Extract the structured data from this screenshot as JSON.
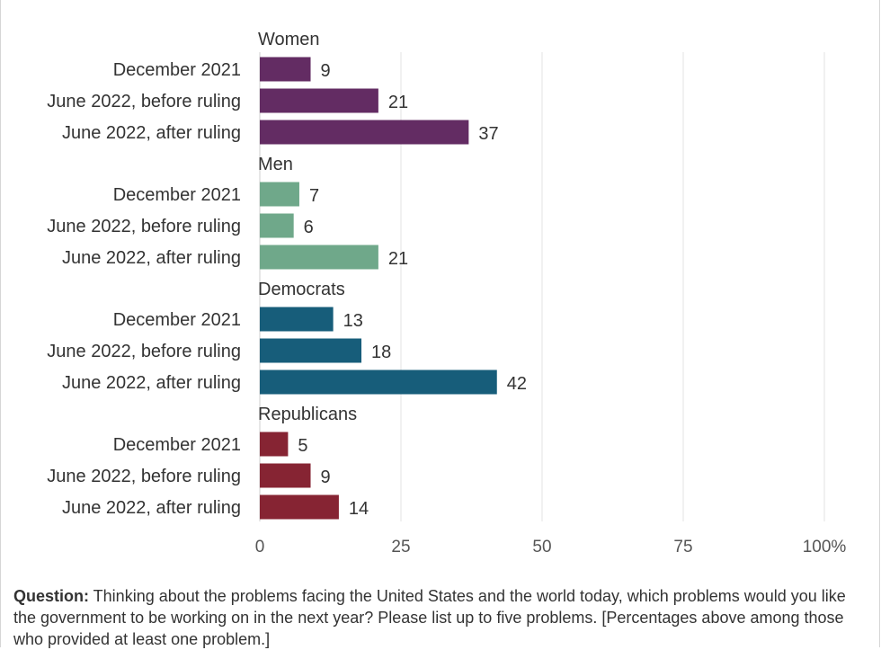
{
  "chart_data": {
    "type": "bar",
    "orientation": "horizontal",
    "xlim": [
      0,
      100
    ],
    "ticks": [
      0,
      25,
      50,
      75,
      100
    ],
    "tick_labels": [
      "0",
      "25",
      "50",
      "75",
      "100%"
    ],
    "grid": true,
    "groups": [
      {
        "name": "Women",
        "color": "#632c63",
        "categories": [
          "December 2021",
          "June 2022, before ruling",
          "June 2022, after ruling"
        ],
        "values": [
          9,
          21,
          37
        ]
      },
      {
        "name": "Men",
        "color": "#6fa88a",
        "categories": [
          "December 2021",
          "June 2022, before ruling",
          "June 2022, after ruling"
        ],
        "values": [
          7,
          6,
          21
        ]
      },
      {
        "name": "Democrats",
        "color": "#175d7a",
        "categories": [
          "December 2021",
          "June 2022, before ruling",
          "June 2022, after ruling"
        ],
        "values": [
          13,
          18,
          42
        ]
      },
      {
        "name": "Republicans",
        "color": "#862433",
        "categories": [
          "December 2021",
          "June 2022, before ruling",
          "June 2022, after ruling"
        ],
        "values": [
          5,
          9,
          14
        ]
      }
    ]
  },
  "note": {
    "label": "Question:",
    "text": " Thinking about the problems facing the United States and the world today, which problems would you like the government to be working on in the next year? Please list up to five problems. [Percentages above among those who provided at least one problem.]"
  }
}
